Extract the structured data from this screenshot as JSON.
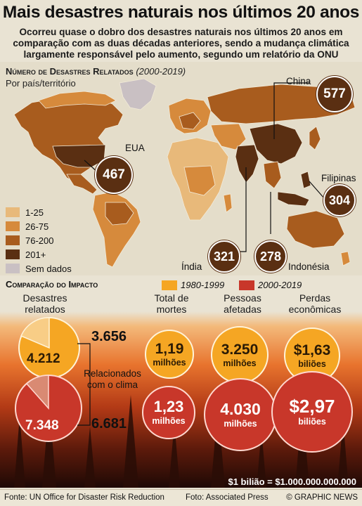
{
  "header": {
    "title": "Mais desastres naturais nos últimos 20 anos",
    "subtitle": "Ocorreu quase o dobro dos desastres naturais nos últimos 20 anos em comparação com as duas décadas anteriores, sendo a mudança climática largamente responsável pelo aumento, segundo um relatório da ONU"
  },
  "map": {
    "title": "Número de Desastres Relatados",
    "years": "(2000-2019)",
    "subtitle": "Por país/território",
    "callouts": [
      {
        "country": "China",
        "value": "577"
      },
      {
        "country": "EUA",
        "value": "467"
      },
      {
        "country": "Filipinas",
        "value": "304"
      },
      {
        "country": "Índia",
        "value": "321"
      },
      {
        "country": "Indonésia",
        "value": "278"
      }
    ],
    "legend": [
      {
        "label": "1-25",
        "color": "#e8b97a"
      },
      {
        "label": "26-75",
        "color": "#d68a3c"
      },
      {
        "label": "76-200",
        "color": "#a85c1e"
      },
      {
        "label": "201+",
        "color": "#5a2f12"
      },
      {
        "label": "Sem dados",
        "color": "#c9c0c3"
      }
    ]
  },
  "comparison": {
    "title": "Comparação do Impacto",
    "key_old": {
      "label": "1980-1999",
      "color": "#f5a623"
    },
    "key_new": {
      "label": "2000-2019",
      "color": "#c8372a"
    },
    "disasters": {
      "header": "Desastres relatados",
      "old_total": "4.212",
      "old_climate": "3.656",
      "new_total": "7.348",
      "new_climate": "6.681",
      "climate_label": "Relacionados com o clima"
    },
    "deaths": {
      "header": "Total de mortes",
      "old_value": "1,19",
      "old_unit": "milhões",
      "new_value": "1,23",
      "new_unit": "milhões"
    },
    "affected": {
      "header": "Pessoas afetadas",
      "old_value": "3.250",
      "old_unit": "milhões",
      "new_value": "4.030",
      "new_unit": "milhões"
    },
    "losses": {
      "header": "Perdas econômicas",
      "old_value": "$1,63",
      "old_unit": "biliões",
      "new_value": "$2,97",
      "new_unit": "biliões"
    },
    "note": "$1 bilião = $1.000.000.000.000"
  },
  "footer": {
    "source": "Fonte: UN Office for Disaster Risk Reduction",
    "photo": "Foto: Associated Press",
    "brand": "© GRAPHIC NEWS"
  }
}
